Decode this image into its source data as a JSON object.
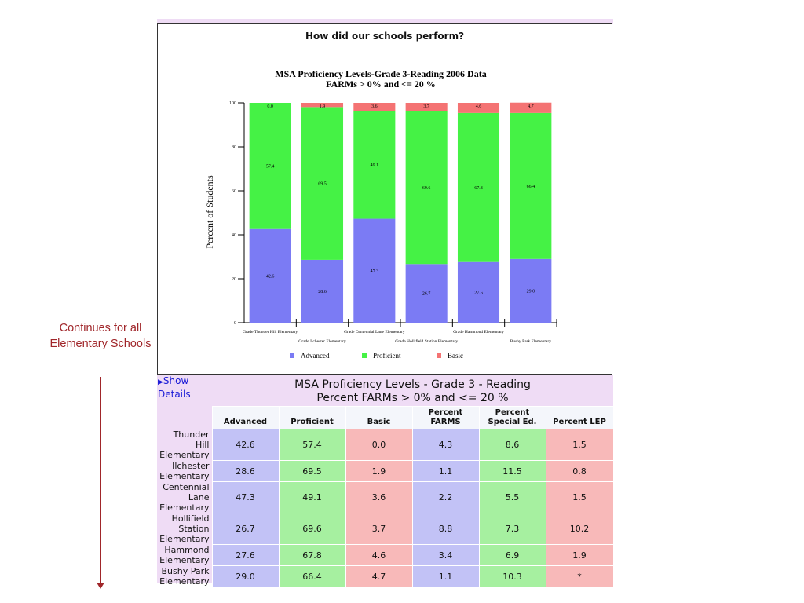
{
  "side_note": "Continues for all Elementary Schools",
  "chart_heading": "How did our schools perform?",
  "chart_data": {
    "type": "bar",
    "stacked": true,
    "title": "MSA Proficiency Levels-Grade 3-Reading 2006 Data",
    "subtitle": "FARMs > 0% and <= 20 %",
    "ylabel": "Percent of Students",
    "xlabel": "",
    "ylim": [
      0,
      100
    ],
    "yticks": [
      0,
      20,
      40,
      60,
      80,
      100
    ],
    "legend_position": "bottom",
    "categories": [
      "Grade Thunder Hill Elementary",
      "Grade Ilchester Elementary",
      "Grade Centennial Lane Elementary",
      "Grade Hollifield Station Elementary",
      "Grade Hammond Elementary",
      "Bushy Park Elementary"
    ],
    "series": [
      {
        "name": "Advanced",
        "color": "#7b7bf4",
        "values": [
          42.6,
          28.6,
          47.3,
          26.7,
          27.6,
          29.0
        ],
        "labels": [
          "42.6",
          "28.6",
          "47.3",
          "26.7",
          "27.6",
          "29.0"
        ]
      },
      {
        "name": "Proficient",
        "color": "#45f245",
        "values": [
          57.4,
          69.5,
          49.1,
          69.6,
          67.8,
          66.4
        ],
        "labels": [
          "57.4",
          "69.5",
          "49.1",
          "69.6",
          "67.8",
          "66.4"
        ]
      },
      {
        "name": "Basic",
        "color": "#f47373",
        "values": [
          0.0,
          1.9,
          3.6,
          3.7,
          4.6,
          4.7
        ],
        "labels": [
          "0.0",
          "1.9",
          "3.6",
          "3.7",
          "4.6",
          "4.7"
        ]
      }
    ]
  },
  "table": {
    "show_details": "Show Details",
    "title_line1": "MSA Proficiency Levels - Grade 3 - Reading",
    "title_line2": "Percent FARMs > 0% and <= 20 %",
    "columns": [
      "Advanced",
      "Proficient",
      "Basic",
      "Percent FARMS",
      "Percent Special Ed.",
      "Percent LEP"
    ],
    "rows": [
      {
        "school": "Thunder Hill Elementary",
        "cells": [
          "42.6",
          "57.4",
          "0.0",
          "4.3",
          "8.6",
          "1.5"
        ]
      },
      {
        "school": "Ilchester Elementary",
        "cells": [
          "28.6",
          "69.5",
          "1.9",
          "1.1",
          "11.5",
          "0.8"
        ]
      },
      {
        "school": "Centennial Lane Elementary",
        "cells": [
          "47.3",
          "49.1",
          "3.6",
          "2.2",
          "5.5",
          "1.5"
        ]
      },
      {
        "school": "Hollifield Station Elementary",
        "cells": [
          "26.7",
          "69.6",
          "3.7",
          "8.8",
          "7.3",
          "10.2"
        ]
      },
      {
        "school": "Hammond Elementary",
        "cells": [
          "27.6",
          "67.8",
          "4.6",
          "3.4",
          "6.9",
          "1.9"
        ]
      },
      {
        "school": "Bushy Park Elementary",
        "cells": [
          "29.0",
          "66.4",
          "4.7",
          "1.1",
          "10.3",
          "*"
        ]
      }
    ]
  }
}
